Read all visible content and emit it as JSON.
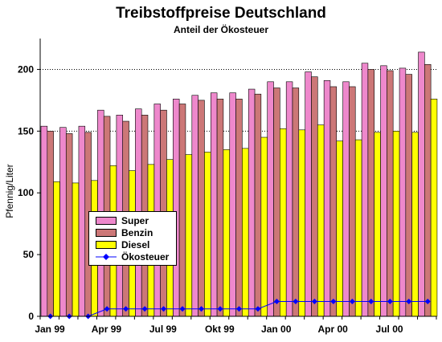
{
  "chart_data": {
    "type": "bar",
    "title": "Treibstoffpreise Deutschland",
    "subtitle": "Anteil der Ökosteuer",
    "ylabel": "Pfennig/Liter",
    "xlabel": "",
    "ylim": [
      0,
      225
    ],
    "yticks": [
      0,
      50,
      100,
      150,
      200
    ],
    "grid": "horizontal-dotted",
    "legend_position": "left-center",
    "x_tick_labels": [
      {
        "index": 0,
        "label": "Jan 99"
      },
      {
        "index": 3,
        "label": "Apr 99"
      },
      {
        "index": 6,
        "label": "Jul 99"
      },
      {
        "index": 9,
        "label": "Okt 99"
      },
      {
        "index": 12,
        "label": "Jan 00"
      },
      {
        "index": 15,
        "label": "Apr 00"
      },
      {
        "index": 18,
        "label": "Jul 00"
      }
    ],
    "n_periods": 21,
    "series": [
      {
        "name": "Super",
        "kind": "bar",
        "color": "#ee88cc",
        "values": [
          154,
          153,
          154,
          167,
          163,
          168,
          172,
          176,
          179,
          181,
          181,
          184,
          190,
          190,
          198,
          191,
          190,
          205,
          203,
          201,
          214
        ]
      },
      {
        "name": "Benzin",
        "kind": "bar",
        "color": "#cc7777",
        "values": [
          150,
          148,
          149,
          162,
          158,
          163,
          167,
          172,
          175,
          176,
          176,
          180,
          185,
          185,
          194,
          186,
          186,
          200,
          199,
          196,
          204
        ]
      },
      {
        "name": "Diesel",
        "kind": "bar",
        "color": "#ffff00",
        "values": [
          109,
          108,
          110,
          122,
          118,
          123,
          127,
          131,
          133,
          135,
          136,
          145,
          152,
          151,
          155,
          142,
          143,
          149,
          150,
          149,
          176
        ]
      },
      {
        "name": "Ökosteuer",
        "kind": "line",
        "color": "#0000ff",
        "values": [
          0,
          0,
          0,
          6,
          6,
          6,
          6,
          6,
          6,
          6,
          6,
          6,
          12,
          12,
          12,
          12,
          12,
          12,
          12,
          12,
          12
        ]
      }
    ]
  }
}
